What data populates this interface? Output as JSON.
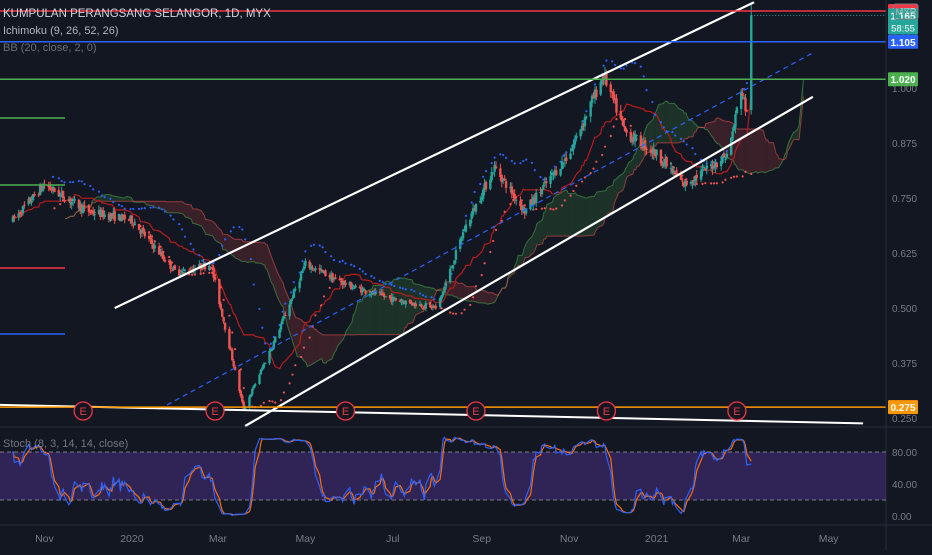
{
  "header": {
    "title": "KUMPULAN PERANGSANG SELANGOR, 1D, MYX",
    "indicator1": "Ichimoku (9, 26, 52, 26)",
    "indicator2": "BB (20, close, 2, 0)",
    "stoch_label": "Stoch (8, 3, 14, 14, close)"
  },
  "chart_data": [
    {
      "type": "candlestick",
      "title": "KUMPULAN PERANGSANG SELANGOR, 1D, MYX",
      "currency": "MYR",
      "x_ticks": [
        "Nov",
        "2020",
        "Mar",
        "May",
        "Jul",
        "Sep",
        "Nov",
        "2021",
        "Mar",
        "May"
      ],
      "y_ticks": [
        0.25,
        0.375,
        0.5,
        0.625,
        0.75,
        0.875,
        1.0,
        1.125
      ],
      "y_tick_labels": [
        "0.250",
        "0.375",
        "0.500",
        "0.625",
        "0.750",
        "0.875",
        "1.000",
        "1.125"
      ],
      "ylim": [
        0.232,
        1.2
      ],
      "grid": false,
      "price_path": [
        {
          "date": "2019-10-10",
          "price": 0.7
        },
        {
          "date": "2019-11-01",
          "price": 0.78
        },
        {
          "date": "2019-12-01",
          "price": 0.72
        },
        {
          "date": "2020-01-01",
          "price": 0.7
        },
        {
          "date": "2020-02-01",
          "price": 0.58
        },
        {
          "date": "2020-02-25",
          "price": 0.6
        },
        {
          "date": "2020-03-19",
          "price": 0.27
        },
        {
          "date": "2020-04-10",
          "price": 0.43
        },
        {
          "date": "2020-05-01",
          "price": 0.6
        },
        {
          "date": "2020-06-01",
          "price": 0.55
        },
        {
          "date": "2020-07-01",
          "price": 0.52
        },
        {
          "date": "2020-08-01",
          "price": 0.5
        },
        {
          "date": "2020-08-20",
          "price": 0.68
        },
        {
          "date": "2020-09-10",
          "price": 0.82
        },
        {
          "date": "2020-10-01",
          "price": 0.72
        },
        {
          "date": "2020-11-01",
          "price": 0.85
        },
        {
          "date": "2020-11-25",
          "price": 1.03
        },
        {
          "date": "2020-12-10",
          "price": 0.9
        },
        {
          "date": "2021-01-01",
          "price": 0.85
        },
        {
          "date": "2021-01-20",
          "price": 0.78
        },
        {
          "date": "2021-02-20",
          "price": 0.85
        },
        {
          "date": "2021-03-01",
          "price": 1.0
        },
        {
          "date": "2021-03-05",
          "price": 0.94
        },
        {
          "date": "2021-03-08",
          "price": 1.165
        }
      ],
      "channel": {
        "upper": [
          {
            "date": "2019-12-20",
            "price": 0.5
          },
          {
            "date": "2021-03-10",
            "price": 1.195
          }
        ],
        "lower": [
          {
            "date": "2020-03-20",
            "price": 0.232
          },
          {
            "date": "2021-04-20",
            "price": 0.98
          }
        ],
        "mid": [
          {
            "date": "2020-01-20",
            "price": 0.27
          },
          {
            "date": "2021-04-20",
            "price": 1.08
          }
        ]
      },
      "support_line": [
        {
          "date": "2019-10-01",
          "price": 0.28
        },
        {
          "date": "2021-05-25",
          "price": 0.238
        }
      ],
      "horizontal_levels": [
        {
          "price": 1.175,
          "label": "1.175",
          "color": "#f23645"
        },
        {
          "price": 1.105,
          "label": "1.105",
          "color": "#2962ff"
        },
        {
          "price": 1.02,
          "label": "1.020",
          "color": "#4caf50"
        },
        {
          "price": 0.275,
          "label": "0.275",
          "color": "#ff9800"
        }
      ],
      "last_price": {
        "price": 1.165,
        "label": "1.165",
        "countdown": "58:55",
        "color": "#26a69a"
      },
      "earnings_markers": [
        {
          "date": "2019-11-28",
          "label": "E"
        },
        {
          "date": "2020-02-28",
          "label": "E"
        },
        {
          "date": "2020-05-29",
          "label": "E"
        },
        {
          "date": "2020-08-28",
          "label": "E"
        },
        {
          "date": "2020-11-27",
          "label": "E"
        },
        {
          "date": "2021-02-26",
          "label": "E"
        }
      ]
    },
    {
      "type": "line",
      "title": "Stoch (8, 3, 14, 14, close)",
      "y_ticks": [
        0,
        40,
        80
      ],
      "y_tick_labels": [
        "0.00",
        "40.00",
        "80.00"
      ],
      "ylim": [
        -10,
        110
      ],
      "band": [
        20,
        80
      ],
      "x_ticks": [
        "Nov",
        "2020",
        "Mar",
        "May",
        "Jul",
        "Sep",
        "Nov",
        "2021",
        "Mar",
        "May"
      ]
    }
  ],
  "colors": {
    "background": "#131722",
    "up": "#26a69a",
    "down": "#ef5350",
    "channel": "#ffffff",
    "mid_channel": "#2962ff",
    "stoch_k": "#2962ff",
    "stoch_d": "#ff6d00",
    "stoch_band": "#4a1f86"
  },
  "icons": {
    "currency_badge": "currency-badge"
  }
}
